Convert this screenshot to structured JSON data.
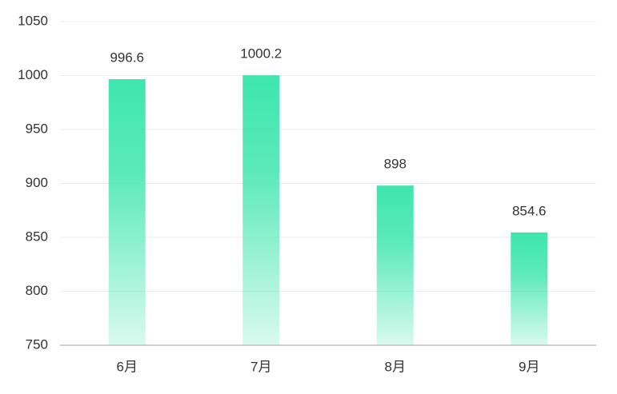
{
  "chart_data": {
    "type": "bar",
    "categories": [
      "6月",
      "7月",
      "8月",
      "9月"
    ],
    "values": [
      996.6,
      1000.2,
      898,
      854.6
    ],
    "color": "#3ee6ad",
    "ylim": [
      750,
      1050
    ],
    "yticks": [
      750,
      800,
      850,
      900,
      950,
      1000,
      1050
    ],
    "grid": true
  }
}
